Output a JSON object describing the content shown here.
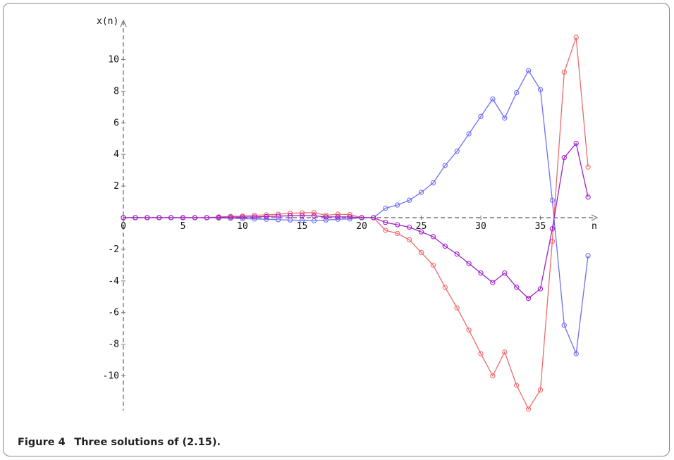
{
  "caption": {
    "label": "Figure 4",
    "text": "Three solutions of (2.15)."
  },
  "chart_data": {
    "type": "line",
    "title": "",
    "xlabel": "n",
    "ylabel": "x(n)",
    "xlim": [
      0,
      40
    ],
    "ylim": [
      -12.2,
      12.6
    ],
    "x_ticks": [
      0,
      5,
      10,
      15,
      20,
      25,
      30,
      35
    ],
    "y_ticks": [
      -10,
      -8,
      -6,
      -4,
      -2,
      2,
      4,
      6,
      8,
      10
    ],
    "grid": false,
    "legend": "none",
    "series": [
      {
        "color": "#6e6ef5",
        "x": [
          0,
          1,
          2,
          3,
          4,
          5,
          6,
          7,
          8,
          9,
          10,
          11,
          12,
          13,
          14,
          15,
          16,
          17,
          18,
          19,
          20,
          21,
          22,
          23,
          24,
          25,
          26,
          27,
          28,
          29,
          30,
          31,
          32,
          33,
          34,
          35,
          36,
          37,
          38,
          39
        ],
        "y": [
          0,
          0,
          0,
          0,
          0,
          0,
          0,
          0,
          -0.02,
          -0.04,
          -0.06,
          -0.08,
          -0.1,
          -0.13,
          -0.15,
          -0.17,
          -0.2,
          -0.15,
          -0.1,
          -0.08,
          0,
          0,
          0.6,
          0.8,
          1.1,
          1.6,
          2.2,
          3.3,
          4.2,
          5.3,
          6.4,
          7.5,
          6.3,
          7.9,
          9.3,
          8.1,
          1.1,
          -6.8,
          -8.6,
          -2.4
        ]
      },
      {
        "color": "#f06a6a",
        "x": [
          0,
          1,
          2,
          3,
          4,
          5,
          6,
          7,
          8,
          9,
          10,
          11,
          12,
          13,
          14,
          15,
          16,
          17,
          18,
          19,
          20,
          21,
          22,
          23,
          24,
          25,
          26,
          27,
          28,
          29,
          30,
          31,
          32,
          33,
          34,
          35,
          36,
          37,
          38,
          39
        ],
        "y": [
          0,
          0,
          0,
          0,
          0,
          0,
          0,
          0,
          0.05,
          0.08,
          0.1,
          0.15,
          0.18,
          0.22,
          0.28,
          0.3,
          0.32,
          0.15,
          0.22,
          0.2,
          0,
          0,
          -0.8,
          -1.0,
          -1.4,
          -2.2,
          -3.0,
          -4.4,
          -5.7,
          -7.1,
          -8.6,
          -10.0,
          -8.5,
          -10.6,
          -12.1,
          -10.9,
          -1.5,
          9.2,
          11.4,
          3.2
        ]
      },
      {
        "color": "#a020c8",
        "x": [
          0,
          1,
          2,
          3,
          4,
          5,
          6,
          7,
          8,
          9,
          10,
          11,
          12,
          13,
          14,
          15,
          16,
          17,
          18,
          19,
          20,
          21,
          22,
          23,
          24,
          25,
          26,
          27,
          28,
          29,
          30,
          31,
          32,
          33,
          34,
          35,
          36,
          37,
          38,
          39
        ],
        "y": [
          0,
          0,
          0,
          0,
          0,
          0,
          0,
          0,
          0.02,
          0.03,
          0.04,
          0.05,
          0.07,
          0.1,
          0.12,
          0.13,
          0.12,
          0.05,
          0.05,
          0.05,
          0,
          0,
          -0.3,
          -0.45,
          -0.6,
          -0.9,
          -1.2,
          -1.8,
          -2.3,
          -2.9,
          -3.5,
          -4.1,
          -3.5,
          -4.4,
          -5.1,
          -4.5,
          -0.7,
          3.8,
          4.7,
          1.3
        ]
      }
    ]
  }
}
